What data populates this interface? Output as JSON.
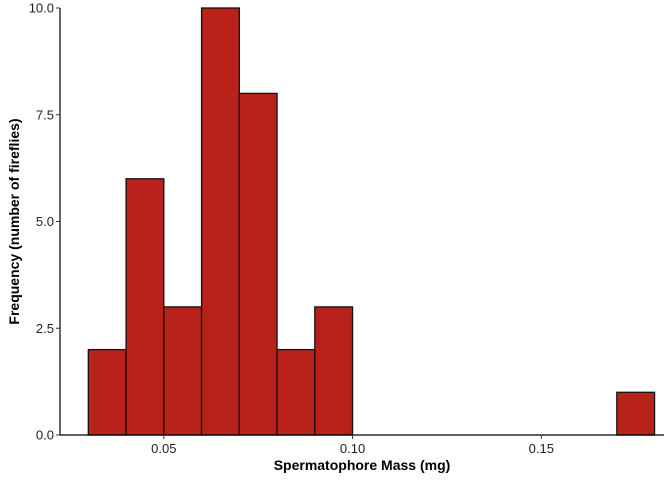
{
  "chart_data": {
    "type": "bar",
    "histogram": true,
    "bar_color": "#B8221A",
    "outline_color": "#111111",
    "xlabel": "Spermatophore Mass (mg)",
    "ylabel": "Frequency (number of fireflies)",
    "xlim": [
      0.0225,
      0.1825
    ],
    "ylim": [
      0,
      10
    ],
    "x_ticks": [
      0.05,
      0.1,
      0.15
    ],
    "x_tick_labels": [
      "0.05",
      "0.10",
      "0.15"
    ],
    "y_ticks": [
      0,
      2.5,
      5,
      7.5,
      10
    ],
    "y_tick_labels": [
      "0.0",
      "2.5",
      "5.0",
      "7.5",
      "10.0"
    ],
    "grid": false,
    "legend": "none",
    "bins": [
      {
        "x_start": 0.03,
        "x_end": 0.04,
        "count": 2
      },
      {
        "x_start": 0.04,
        "x_end": 0.05,
        "count": 6
      },
      {
        "x_start": 0.05,
        "x_end": 0.06,
        "count": 3
      },
      {
        "x_start": 0.06,
        "x_end": 0.07,
        "count": 10
      },
      {
        "x_start": 0.07,
        "x_end": 0.08,
        "count": 8
      },
      {
        "x_start": 0.08,
        "x_end": 0.09,
        "count": 2
      },
      {
        "x_start": 0.09,
        "x_end": 0.1,
        "count": 3
      },
      {
        "x_start": 0.17,
        "x_end": 0.18,
        "count": 1
      }
    ]
  }
}
